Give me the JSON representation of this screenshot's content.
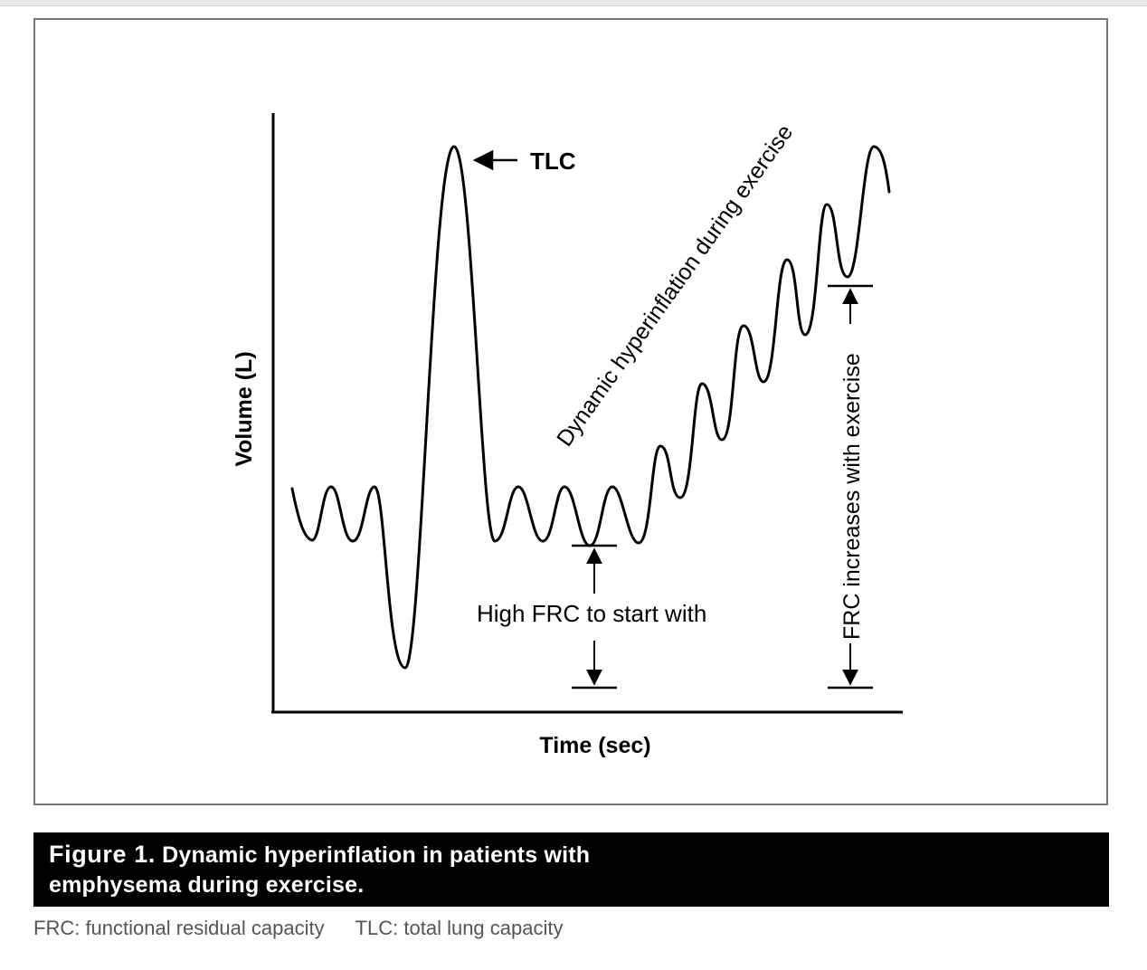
{
  "figure": {
    "y_axis_label": "Volume (L)",
    "x_axis_label": "Time (sec)",
    "annotations": {
      "tlc": "TLC",
      "dynamic_hyperinflation": "Dynamic hyperinflation during exercise",
      "high_frc": "High FRC to start with",
      "frc_increases": "FRC increases with exercise"
    }
  },
  "caption": {
    "label": "Figure  1.",
    "line1": "Dynamic hyperinflation in patients with",
    "line2": "emphysema during exercise."
  },
  "footnote": {
    "frc_definition": "FRC: functional residual capacity",
    "tlc_definition": "TLC: total lung capacity"
  },
  "colors": {
    "ink": "#000000",
    "frame_border": "#777777",
    "caption_background": "#000000",
    "caption_text": "#ffffff",
    "footnote_text": "#555555"
  }
}
